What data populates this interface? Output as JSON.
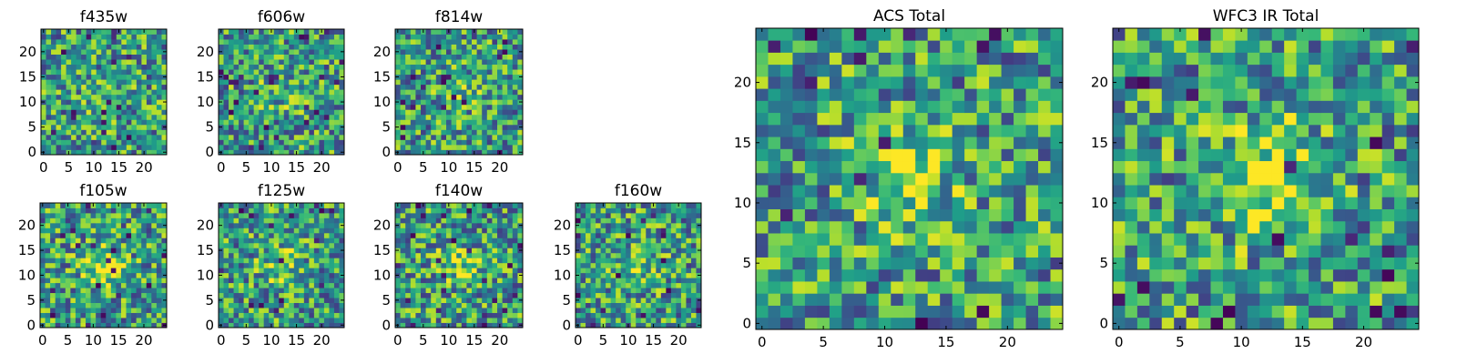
{
  "chart_data": [
    {
      "type": "heatmap",
      "title": "f435w",
      "xticks": [
        "0",
        "5",
        "10",
        "15",
        "20"
      ],
      "yticks": [
        "0",
        "5",
        "10",
        "15",
        "20"
      ],
      "xlim": [
        -0.5,
        24.5
      ],
      "ylim": [
        -0.5,
        24.5
      ],
      "grid": false,
      "colormap": "viridis",
      "rows": 25,
      "cols": 25,
      "seed": 11,
      "peak": 0.08
    },
    {
      "type": "heatmap",
      "title": "f606w",
      "xticks": [
        "0",
        "5",
        "10",
        "15",
        "20"
      ],
      "yticks": [
        "0",
        "5",
        "10",
        "15",
        "20"
      ],
      "xlim": [
        -0.5,
        24.5
      ],
      "ylim": [
        -0.5,
        24.5
      ],
      "grid": false,
      "colormap": "viridis",
      "rows": 25,
      "cols": 25,
      "seed": 23,
      "peak": 0.12
    },
    {
      "type": "heatmap",
      "title": "f814w",
      "xticks": [
        "0",
        "5",
        "10",
        "15",
        "20"
      ],
      "yticks": [
        "0",
        "5",
        "10",
        "15",
        "20"
      ],
      "xlim": [
        -0.5,
        24.5
      ],
      "ylim": [
        -0.5,
        24.5
      ],
      "grid": false,
      "colormap": "viridis",
      "rows": 25,
      "cols": 25,
      "seed": 37,
      "peak": 0.12
    },
    {
      "type": "heatmap",
      "title": "f105w",
      "xticks": [
        "0",
        "5",
        "10",
        "15",
        "20"
      ],
      "yticks": [
        "0",
        "5",
        "10",
        "15",
        "20"
      ],
      "xlim": [
        -0.5,
        24.5
      ],
      "ylim": [
        -0.5,
        24.5
      ],
      "grid": false,
      "colormap": "viridis",
      "rows": 25,
      "cols": 25,
      "seed": 41,
      "peak": 0.3
    },
    {
      "type": "heatmap",
      "title": "f125w",
      "xticks": [
        "0",
        "5",
        "10",
        "15",
        "20"
      ],
      "yticks": [
        "0",
        "5",
        "10",
        "15",
        "20"
      ],
      "xlim": [
        -0.5,
        24.5
      ],
      "ylim": [
        -0.5,
        24.5
      ],
      "grid": false,
      "colormap": "viridis",
      "rows": 25,
      "cols": 25,
      "seed": 53,
      "peak": 0.2
    },
    {
      "type": "heatmap",
      "title": "f140w",
      "xticks": [
        "0",
        "5",
        "10",
        "15",
        "20"
      ],
      "yticks": [
        "0",
        "5",
        "10",
        "15",
        "20"
      ],
      "xlim": [
        -0.5,
        24.5
      ],
      "ylim": [
        -0.5,
        24.5
      ],
      "grid": false,
      "colormap": "viridis",
      "rows": 25,
      "cols": 25,
      "seed": 67,
      "peak": 0.22
    },
    {
      "type": "heatmap",
      "title": "f160w",
      "xticks": [
        "0",
        "5",
        "10",
        "15",
        "20"
      ],
      "yticks": [
        "0",
        "5",
        "10",
        "15",
        "20"
      ],
      "xlim": [
        -0.5,
        24.5
      ],
      "ylim": [
        -0.5,
        24.5
      ],
      "grid": false,
      "colormap": "viridis",
      "rows": 25,
      "cols": 25,
      "seed": 79,
      "peak": 0.2
    },
    {
      "type": "heatmap",
      "title": "ACS Total",
      "xticks": [
        "0",
        "5",
        "10",
        "15",
        "20"
      ],
      "yticks": [
        "0",
        "5",
        "10",
        "15",
        "20"
      ],
      "xlim": [
        -0.5,
        24.5
      ],
      "ylim": [
        -0.5,
        24.5
      ],
      "grid": false,
      "colormap": "viridis",
      "rows": 25,
      "cols": 25,
      "seed": 97,
      "peak": 0.25
    },
    {
      "type": "heatmap",
      "title": "WFC3 IR Total",
      "xticks": [
        "0",
        "5",
        "10",
        "15",
        "20"
      ],
      "yticks": [
        "0",
        "5",
        "10",
        "15",
        "20"
      ],
      "xlim": [
        -0.5,
        24.5
      ],
      "ylim": [
        -0.5,
        24.5
      ],
      "grid": false,
      "colormap": "viridis",
      "rows": 25,
      "cols": 25,
      "seed": 113,
      "peak": 0.4
    }
  ]
}
